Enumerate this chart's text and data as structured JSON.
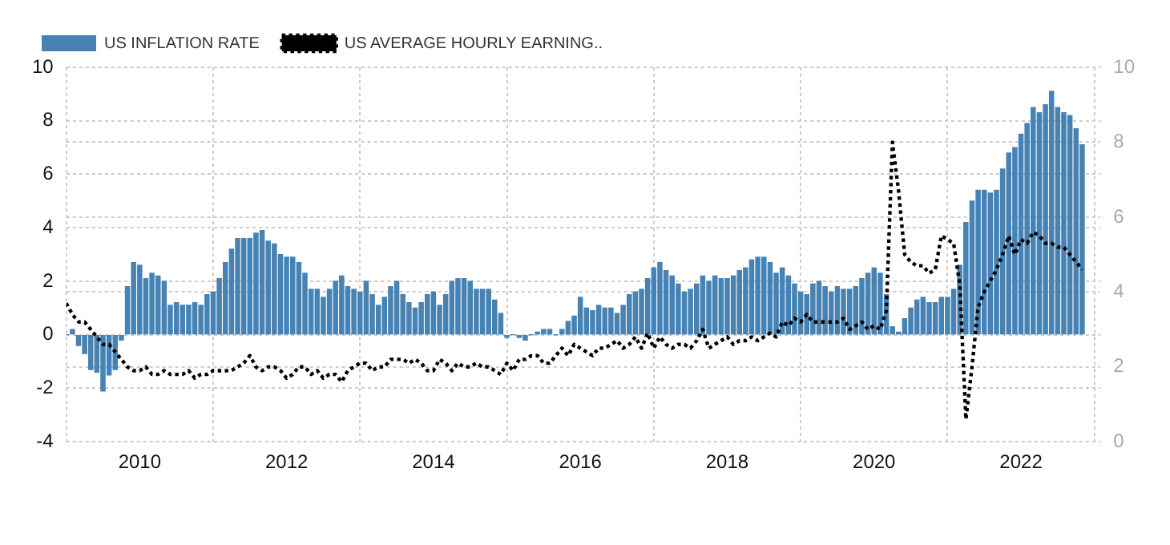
{
  "chart_data": {
    "type": "bar",
    "x": [
      "2009-01",
      "2009-02",
      "2009-03",
      "2009-04",
      "2009-05",
      "2009-06",
      "2009-07",
      "2009-08",
      "2009-09",
      "2009-10",
      "2009-11",
      "2009-12",
      "2010-01",
      "2010-02",
      "2010-03",
      "2010-04",
      "2010-05",
      "2010-06",
      "2010-07",
      "2010-08",
      "2010-09",
      "2010-10",
      "2010-11",
      "2010-12",
      "2011-01",
      "2011-02",
      "2011-03",
      "2011-04",
      "2011-05",
      "2011-06",
      "2011-07",
      "2011-08",
      "2011-09",
      "2011-10",
      "2011-11",
      "2011-12",
      "2012-01",
      "2012-02",
      "2012-03",
      "2012-04",
      "2012-05",
      "2012-06",
      "2012-07",
      "2012-08",
      "2012-09",
      "2012-10",
      "2012-11",
      "2012-12",
      "2013-01",
      "2013-02",
      "2013-03",
      "2013-04",
      "2013-05",
      "2013-06",
      "2013-07",
      "2013-08",
      "2013-09",
      "2013-10",
      "2013-11",
      "2013-12",
      "2014-01",
      "2014-02",
      "2014-03",
      "2014-04",
      "2014-05",
      "2014-06",
      "2014-07",
      "2014-08",
      "2014-09",
      "2014-10",
      "2014-11",
      "2014-12",
      "2015-01",
      "2015-02",
      "2015-03",
      "2015-04",
      "2015-05",
      "2015-06",
      "2015-07",
      "2015-08",
      "2015-09",
      "2015-10",
      "2015-11",
      "2015-12",
      "2016-01",
      "2016-02",
      "2016-03",
      "2016-04",
      "2016-05",
      "2016-06",
      "2016-07",
      "2016-08",
      "2016-09",
      "2016-10",
      "2016-11",
      "2016-12",
      "2017-01",
      "2017-02",
      "2017-03",
      "2017-04",
      "2017-05",
      "2017-06",
      "2017-07",
      "2017-08",
      "2017-09",
      "2017-10",
      "2017-11",
      "2017-12",
      "2018-01",
      "2018-02",
      "2018-03",
      "2018-04",
      "2018-05",
      "2018-06",
      "2018-07",
      "2018-08",
      "2018-09",
      "2018-10",
      "2018-11",
      "2018-12",
      "2019-01",
      "2019-02",
      "2019-03",
      "2019-04",
      "2019-05",
      "2019-06",
      "2019-07",
      "2019-08",
      "2019-09",
      "2019-10",
      "2019-11",
      "2019-12",
      "2020-01",
      "2020-02",
      "2020-03",
      "2020-04",
      "2020-05",
      "2020-06",
      "2020-07",
      "2020-08",
      "2020-09",
      "2020-10",
      "2020-11",
      "2020-12",
      "2021-01",
      "2021-02",
      "2021-03",
      "2021-04",
      "2021-05",
      "2021-06",
      "2021-07",
      "2021-08",
      "2021-09",
      "2021-10",
      "2021-11",
      "2021-12",
      "2022-01",
      "2022-02",
      "2022-03",
      "2022-04",
      "2022-05",
      "2022-06",
      "2022-07",
      "2022-08",
      "2022-09",
      "2022-10",
      "2022-11"
    ],
    "series": [
      {
        "name": "US INFLATION RATE",
        "color": "#4682b4",
        "values": [
          0.0,
          0.2,
          -0.4,
          -0.7,
          -1.3,
          -1.4,
          -2.1,
          -1.5,
          -1.3,
          -0.2,
          1.8,
          2.7,
          2.6,
          2.1,
          2.3,
          2.2,
          2.0,
          1.1,
          1.2,
          1.1,
          1.1,
          1.2,
          1.1,
          1.5,
          1.6,
          2.1,
          2.7,
          3.2,
          3.6,
          3.6,
          3.6,
          3.8,
          3.9,
          3.5,
          3.4,
          3.0,
          2.9,
          2.9,
          2.7,
          2.3,
          1.7,
          1.7,
          1.4,
          1.7,
          2.0,
          2.2,
          1.8,
          1.7,
          1.6,
          2.0,
          1.5,
          1.1,
          1.4,
          1.8,
          2.0,
          1.5,
          1.2,
          1.0,
          1.2,
          1.5,
          1.6,
          1.1,
          1.5,
          2.0,
          2.1,
          2.1,
          2.0,
          1.7,
          1.7,
          1.7,
          1.3,
          0.8,
          -0.1,
          0.0,
          -0.1,
          -0.2,
          0.0,
          0.1,
          0.2,
          0.2,
          0.0,
          0.2,
          0.5,
          0.7,
          1.4,
          1.0,
          0.9,
          1.1,
          1.0,
          1.0,
          0.8,
          1.1,
          1.5,
          1.6,
          1.7,
          2.1,
          2.5,
          2.7,
          2.4,
          2.2,
          1.9,
          1.6,
          1.7,
          1.9,
          2.2,
          2.0,
          2.2,
          2.1,
          2.1,
          2.2,
          2.4,
          2.5,
          2.8,
          2.9,
          2.9,
          2.7,
          2.3,
          2.5,
          2.2,
          1.9,
          1.6,
          1.5,
          1.9,
          2.0,
          1.8,
          1.6,
          1.8,
          1.7,
          1.7,
          1.8,
          2.1,
          2.3,
          2.5,
          2.3,
          1.5,
          0.3,
          0.1,
          0.6,
          1.0,
          1.3,
          1.4,
          1.2,
          1.2,
          1.4,
          1.4,
          1.7,
          2.6,
          4.2,
          5.0,
          5.4,
          5.4,
          5.3,
          5.4,
          6.2,
          6.8,
          7.0,
          7.5,
          7.9,
          8.5,
          8.3,
          8.6,
          9.1,
          8.5,
          8.3,
          8.2,
          7.7,
          7.1
        ]
      },
      {
        "name": "US AVERAGE HOURLY EARNING..",
        "type": "line",
        "axis": "y2",
        "color": "#000000",
        "line_style": "dotted",
        "values": [
          3.7,
          3.4,
          3.2,
          3.2,
          3.0,
          2.8,
          2.6,
          2.6,
          2.4,
          2.2,
          2.0,
          1.9,
          1.9,
          2.0,
          1.8,
          1.8,
          1.9,
          1.8,
          1.8,
          1.8,
          1.9,
          1.7,
          1.8,
          1.8,
          1.9,
          1.9,
          1.9,
          1.9,
          2.0,
          2.1,
          2.3,
          2.0,
          1.9,
          2.0,
          2.0,
          1.9,
          1.7,
          1.8,
          2.0,
          2.0,
          1.8,
          1.9,
          1.7,
          1.8,
          1.8,
          1.6,
          1.9,
          2.0,
          2.1,
          2.1,
          1.9,
          2.0,
          2.0,
          2.2,
          2.2,
          2.2,
          2.1,
          2.2,
          2.1,
          1.9,
          1.9,
          2.2,
          2.1,
          1.9,
          2.1,
          2.0,
          2.0,
          2.1,
          2.0,
          2.0,
          1.9,
          1.8,
          2.1,
          1.9,
          2.2,
          2.2,
          2.3,
          2.3,
          2.1,
          2.1,
          2.3,
          2.5,
          2.3,
          2.6,
          2.5,
          2.4,
          2.3,
          2.5,
          2.5,
          2.6,
          2.7,
          2.5,
          2.6,
          2.8,
          2.5,
          2.9,
          2.5,
          2.8,
          2.6,
          2.5,
          2.6,
          2.6,
          2.5,
          2.7,
          3.0,
          2.5,
          2.6,
          2.7,
          2.8,
          2.6,
          2.7,
          2.7,
          2.8,
          2.7,
          2.8,
          2.9,
          2.8,
          3.2,
          3.1,
          3.3,
          3.2,
          3.4,
          3.2,
          3.2,
          3.2,
          3.2,
          3.2,
          3.3,
          3.0,
          3.1,
          3.2,
          3.0,
          3.1,
          3.0,
          3.5,
          8.0,
          6.7,
          5.0,
          4.8,
          4.7,
          4.7,
          4.5,
          4.6,
          5.5,
          5.4,
          5.3,
          4.2,
          0.6,
          2.0,
          3.6,
          4.0,
          4.3,
          4.6,
          5.0,
          5.5,
          5.0,
          5.4,
          5.3,
          5.6,
          5.5,
          5.3,
          5.3,
          5.2,
          5.2,
          5.0,
          4.8,
          4.6
        ]
      }
    ],
    "xlim": [
      "2009-01",
      "2023-02"
    ],
    "xticks": [
      {
        "value": "2010",
        "label": "2010"
      },
      {
        "value": "2012",
        "label": "2012"
      },
      {
        "value": "2014",
        "label": "2014"
      },
      {
        "value": "2016",
        "label": "2016"
      },
      {
        "value": "2018",
        "label": "2018"
      },
      {
        "value": "2020",
        "label": "2020"
      },
      {
        "value": "2022",
        "label": "2022"
      }
    ],
    "ylim": [
      -4,
      10
    ],
    "yticks": [
      -4,
      -2,
      0,
      2,
      4,
      6,
      8,
      10
    ],
    "y2lim": [
      0,
      10
    ],
    "y2ticks": [
      0,
      2,
      4,
      6,
      8,
      10
    ],
    "grid": true,
    "legend": "top left",
    "marker": "none"
  }
}
